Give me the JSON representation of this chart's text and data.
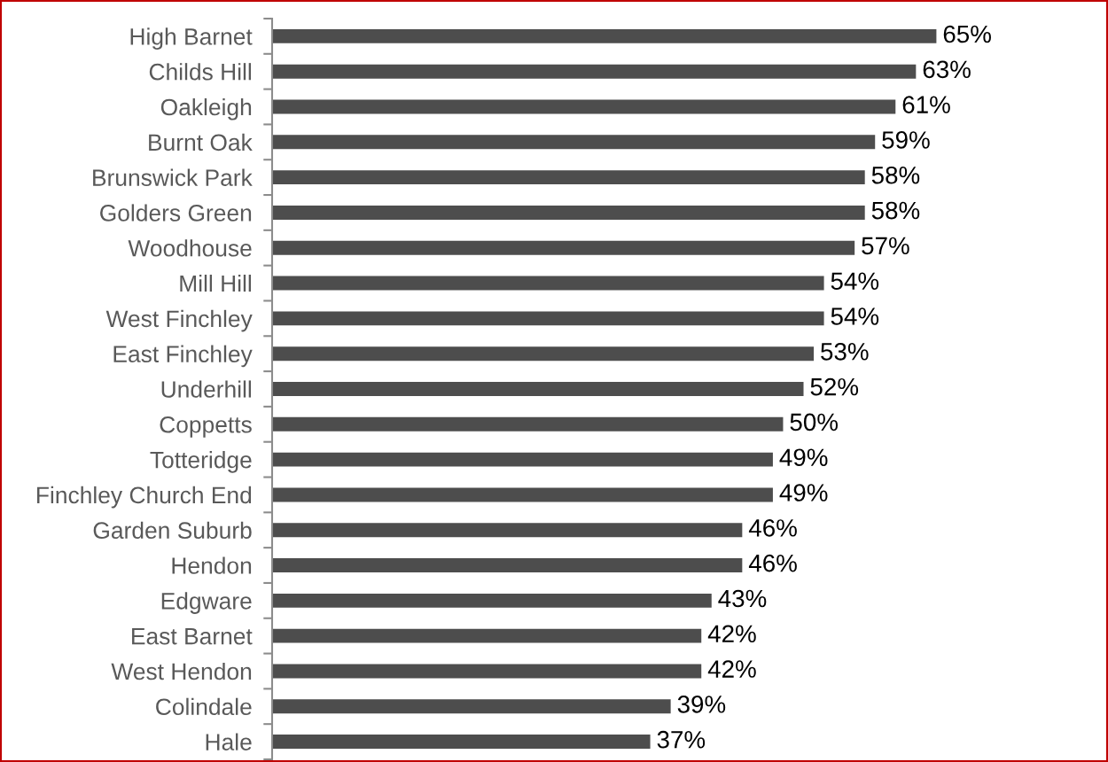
{
  "chart_data": {
    "type": "bar",
    "orientation": "horizontal",
    "categories": [
      "High Barnet",
      "Childs Hill",
      "Oakleigh",
      "Burnt Oak",
      "Brunswick Park",
      "Golders Green",
      "Woodhouse",
      "Mill Hill",
      "West Finchley",
      "East Finchley",
      "Underhill",
      "Coppetts",
      "Totteridge",
      "Finchley Church End",
      "Garden Suburb",
      "Hendon",
      "Edgware",
      "East Barnet",
      "West Hendon",
      "Colindale",
      "Hale"
    ],
    "values": [
      65,
      63,
      61,
      59,
      58,
      58,
      57,
      54,
      54,
      53,
      52,
      50,
      49,
      49,
      46,
      46,
      43,
      42,
      42,
      39,
      37
    ],
    "value_labels": [
      "65%",
      "63%",
      "61%",
      "59%",
      "58%",
      "58%",
      "57%",
      "54%",
      "54%",
      "53%",
      "52%",
      "50%",
      "49%",
      "49%",
      "46%",
      "46%",
      "43%",
      "42%",
      "42%",
      "39%",
      "37%"
    ],
    "color": "#4d4d4d",
    "tick_labels": "y",
    "grid": false
  }
}
